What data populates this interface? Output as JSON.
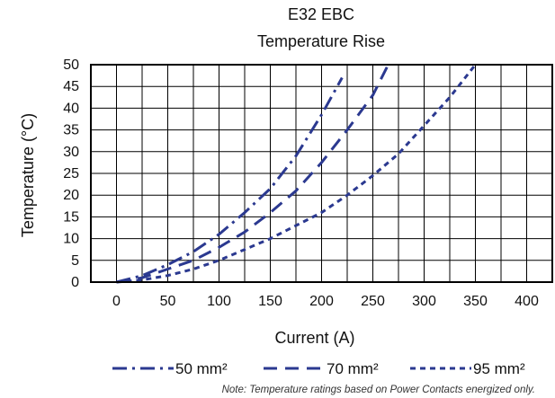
{
  "chart_data": {
    "type": "line",
    "title": "E32 EBC",
    "subtitle": "Temperature Rise",
    "xlabel": "Current (A)",
    "ylabel": "Temperature (°C)",
    "xlim": [
      -25,
      425
    ],
    "ylim": [
      0,
      50
    ],
    "x_ticks": [
      "0",
      "50",
      "100",
      "150",
      "200",
      "250",
      "300",
      "350",
      "400"
    ],
    "y_ticks": [
      "0",
      "5",
      "10",
      "15",
      "20",
      "25",
      "30",
      "35",
      "40",
      "45",
      "50"
    ],
    "grid": true,
    "legend_position": "bottom",
    "series": [
      {
        "name": "50 mm²",
        "style": "dash-dot",
        "color": "#2b3990",
        "x": [
          0,
          25,
          50,
          75,
          100,
          125,
          150,
          175,
          200,
          220
        ],
        "y": [
          0,
          1.5,
          4,
          7,
          11,
          16,
          21.5,
          29,
          38.5,
          47
        ]
      },
      {
        "name": "70 mm²",
        "style": "long-dash",
        "color": "#2b3990",
        "x": [
          0,
          25,
          50,
          75,
          100,
          125,
          150,
          175,
          200,
          225,
          250,
          265
        ],
        "y": [
          0,
          1,
          3,
          5,
          8,
          11.5,
          16,
          21,
          27.5,
          35,
          43,
          50
        ]
      },
      {
        "name": "95 mm²",
        "style": "short-dash",
        "color": "#2b3990",
        "x": [
          0,
          25,
          50,
          75,
          100,
          125,
          150,
          175,
          200,
          225,
          250,
          275,
          300,
          325,
          350
        ],
        "y": [
          0,
          0.5,
          1.5,
          3,
          5,
          7.5,
          10,
          13,
          16,
          20,
          24.5,
          29.5,
          36,
          42.5,
          50
        ]
      }
    ],
    "note": "Note: Temperature ratings based on Power Contacts energized only."
  }
}
